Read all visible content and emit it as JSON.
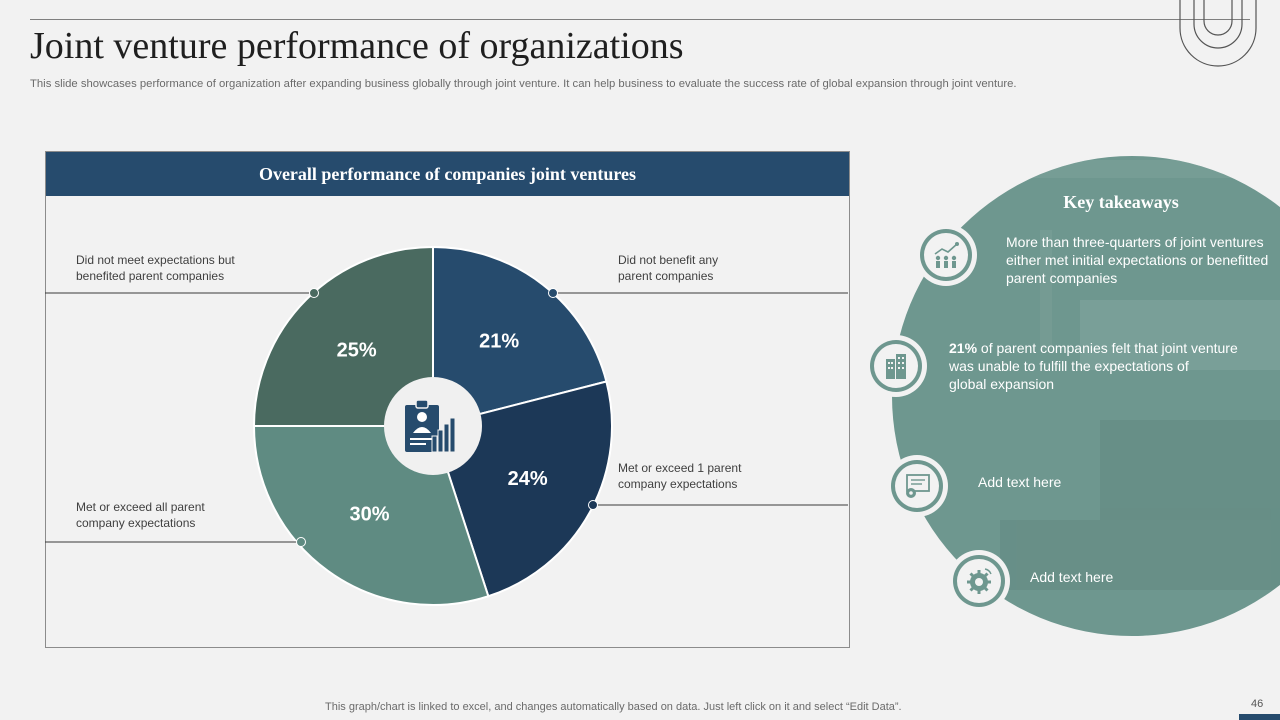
{
  "slide": {
    "title": "Joint venture performance of organizations",
    "subtitle": "This slide showcases performance of organization after expanding business globally through joint venture. It can help business to evaluate the success rate of global expansion through joint venture.",
    "footer_note": "This graph/chart is linked to excel,  and changes automatically based on data. Just left click on it and select “Edit Data”.",
    "page_number": "46"
  },
  "panel": {
    "header": "Overall performance of companies joint ventures"
  },
  "chart_data": {
    "type": "pie",
    "title": "Overall performance of companies joint ventures",
    "slices": [
      {
        "label": "Did not benefit any parent companies",
        "value": 21,
        "value_label": "21%",
        "color": "#264b6d"
      },
      {
        "label": "Met or exceed 1 parent company expectations",
        "value": 24,
        "value_label": "24%",
        "color": "#1c3857"
      },
      {
        "label": "Met or exceed all parent company expectations",
        "value": 30,
        "value_label": "30%",
        "color": "#5f8b82"
      },
      {
        "label": "Did not meet expectations but benefited parent companies",
        "value": 25,
        "value_label": "25%",
        "color": "#4a6a60"
      }
    ],
    "center_icon": "clipboard-chart-icon"
  },
  "callouts": {
    "top_left": [
      "Did not meet expectations but",
      "benefited  parent companies"
    ],
    "top_right": [
      "Did not benefit any",
      "parent companies"
    ],
    "mid_right": [
      "Met or exceed 1 parent",
      "company expectations"
    ],
    "bottom_left": [
      "Met or exceed all parent",
      "company expectations"
    ]
  },
  "takeaways": {
    "title": "Key takeaways",
    "items": [
      {
        "icon": "growth-chart-people-icon",
        "lines": [
          "More than three-quarters of joint ventures",
          "either met initial expectations or benefitted",
          "parent companies"
        ]
      },
      {
        "icon": "buildings-icon",
        "bold": "21%",
        "lines": [
          " of parent companies felt that joint venture",
          "was unable to fulfill the expectations of",
          "global expansion"
        ]
      },
      {
        "icon": "monitor-gear-icon",
        "lines": [
          "Add text here"
        ]
      },
      {
        "icon": "gear-cycle-icon",
        "lines": [
          "Add text here"
        ]
      }
    ]
  },
  "colors": {
    "navy": "#264b6d",
    "dark_navy": "#1c3857",
    "teal": "#5f8b82",
    "dark_green": "#4a6a60",
    "takeaway_bg": "#6e978f",
    "background": "#f2f2f2"
  }
}
